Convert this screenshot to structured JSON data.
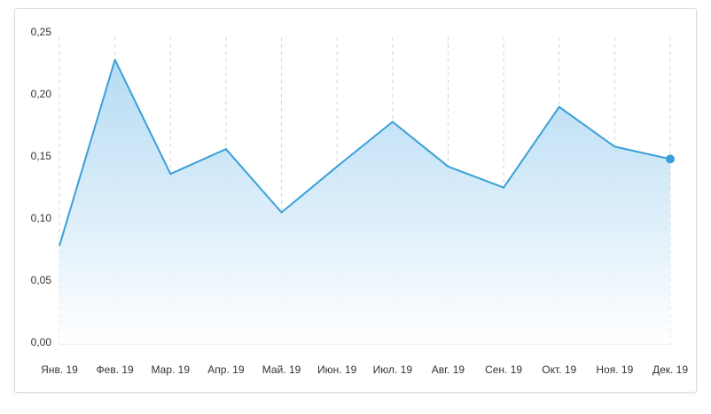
{
  "chart_data": {
    "type": "area",
    "categories": [
      "Янв. 19",
      "Фев. 19",
      "Мар. 19",
      "Апр. 19",
      "Май. 19",
      "Июн. 19",
      "Июл. 19",
      "Авг. 19",
      "Сен. 19",
      "Окт. 19",
      "Ноя. 19",
      "Дек. 19"
    ],
    "values": [
      0.079,
      0.229,
      0.137,
      0.157,
      0.106,
      0.143,
      0.179,
      0.143,
      0.126,
      0.191,
      0.159,
      0.149
    ],
    "color": "#3a9fd8",
    "ylim": [
      0,
      0.25
    ],
    "yticks": [
      {
        "value": 0,
        "label": "0,00"
      },
      {
        "value": 0.05,
        "label": "0,05"
      },
      {
        "value": 0.1,
        "label": "0,10"
      },
      {
        "value": 0.15,
        "label": "0,15"
      },
      {
        "value": 0.2,
        "label": "0,20"
      },
      {
        "value": 0.25,
        "label": "0,25"
      }
    ]
  }
}
